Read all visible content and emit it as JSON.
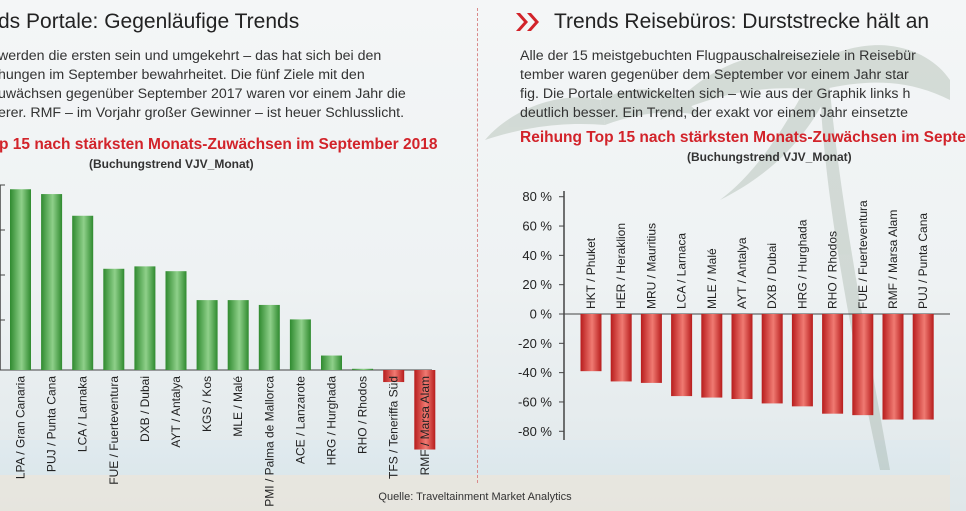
{
  "left": {
    "title": "ds Portale: Gegenläufige Trends",
    "text_lines": [
      "werden die ersten sein und umgekehrt – das hat sich bei den",
      "hungen im September bewahrheitet. Die fünf Ziele mit den",
      "uwächsen gegenüber September 2017 waren vor einem Jahr die",
      "erer. RMF – im Vorjahr großer Gewinner – ist heuer Schlusslicht."
    ],
    "chart_title": "p 15 nach stärksten Monats-Zuwächsen im September 2018",
    "chart_subtitle": "(Buchungstrend VJV_Monat)"
  },
  "right": {
    "title": "Trends Reisebüros: Durststrecke hält an",
    "text_lines": [
      "Alle der 15 meistgebuchten Flugpauschalreiseziele in Reisebür",
      "tember waren gegenüber dem September vor einem Jahr star",
      "fig. Die Portale entwickelten sich – wie aus der Graphik links h",
      "deutlich besser. Ein Trend, der exakt vor einem Jahr einsetzte"
    ],
    "chart_title": "Reihung Top 15 nach stärksten Monats-Zuwächsen im Septe",
    "chart_subtitle": "(Buchungstrend VJV_Monat)"
  },
  "source": "Quelle: Traveltainment Market Analytics",
  "colors": {
    "accent_red": "#d2232a",
    "bar_green_dark": "#2f8a2f",
    "bar_green_light": "#8fd08a",
    "bar_red_dark": "#b71c1c",
    "bar_red_light": "#f07a72"
  },
  "chart_data": [
    {
      "type": "bar",
      "title": "p 15 nach stärksten Monats-Zuwächsen im September 2018",
      "subtitle": "(Buchungstrend VJV_Monat)",
      "categories": [
        "LPA / Gran Canaria",
        "PUJ / Punta Cana",
        "LCA / Larnaka",
        "FUE / Fuerteventura",
        "DXB / Dubai",
        "AYT / Antalya",
        "KGS / Kos",
        "MLE / Malé",
        "PMI / Palma de Mallorca",
        "ACE / Lanzarote",
        "HRG / Hurghada",
        "RHO / Rhodos",
        "TFS / Teneriffa Süd",
        "RMF / Marsa Alam"
      ],
      "values": [
        75,
        73,
        64,
        42,
        43,
        41,
        29,
        29,
        27,
        21,
        6,
        0.5,
        -5,
        -33
      ],
      "ylim": [
        -40,
        90
      ],
      "grid": false,
      "legend": "none"
    },
    {
      "type": "bar",
      "title": "Reihung Top 15 nach stärksten Monats-Zuwächsen im Septe",
      "subtitle": "(Buchungstrend VJV_Monat)",
      "categories": [
        "HKT / Phuket",
        "HER / Heraklion",
        "MRU / Mauritius",
        "LCA / Larnaca",
        "MLE / Malé",
        "AYT / Antalya",
        "DXB / Dubai",
        "HRG / Hurghada",
        "RHO / Rhodos",
        "FUE / Fuerteventura",
        "RMF / Marsa Alam",
        "PUJ / Punta Cana"
      ],
      "values": [
        -39,
        -46,
        -47,
        -56,
        -57,
        -58,
        -61,
        -63,
        -68,
        -69,
        -72,
        -72
      ],
      "yticks": [
        "80 %",
        "60 %",
        "40 %",
        "20 %",
        "0 %",
        "-20 %",
        "-40 %",
        "-60 %",
        "-80 %"
      ],
      "ylim": [
        -85,
        85
      ],
      "grid": false,
      "legend": "none"
    }
  ]
}
